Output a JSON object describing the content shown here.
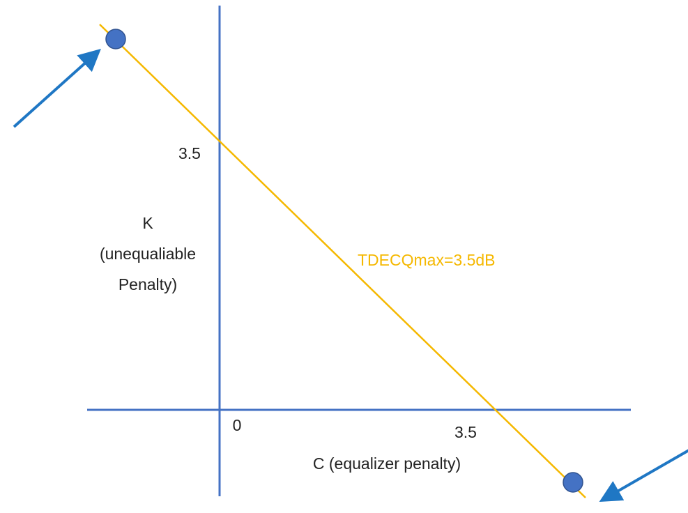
{
  "y_axis": {
    "tick": "3.5",
    "label": [
      "K",
      "(unequaliable",
      "Penalty)"
    ]
  },
  "x_axis": {
    "origin": "0",
    "tick": "3.5",
    "label": "C (equalizer penalty)"
  },
  "line_label": "TDECQmax=3.5dB"
}
